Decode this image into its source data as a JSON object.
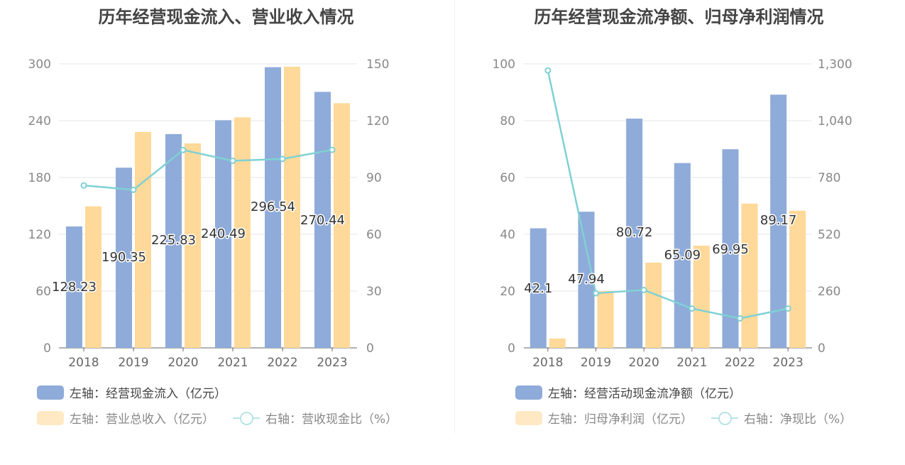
{
  "charts": [
    {
      "title": "历年经营现金流入、营业收入情况",
      "legend": [
        {
          "label": "左轴：经营现金流入（亿元）",
          "kind": "bar",
          "color": "#8eabd9"
        },
        {
          "label": "左轴：营业总收入（亿元）",
          "kind": "bar",
          "color": "#ffd999"
        },
        {
          "label": "右轴：营收现金比（%）",
          "kind": "line",
          "color": "#7fd1d4"
        }
      ]
    },
    {
      "title": "历年经营现金流净额、归母净利润情况",
      "legend": [
        {
          "label": "左轴：经营活动现金流净额（亿元）",
          "kind": "bar",
          "color": "#8eabd9"
        },
        {
          "label": "左轴：归母净利润（亿元）",
          "kind": "bar",
          "color": "#ffd999"
        },
        {
          "label": "右轴：净现比（%）",
          "kind": "line",
          "color": "#7fd1d4"
        }
      ]
    }
  ],
  "chart_data": [
    {
      "type": "bar",
      "title": "历年经营现金流入、营业收入情况",
      "categories": [
        "2018",
        "2019",
        "2020",
        "2021",
        "2022",
        "2023"
      ],
      "left_axis": {
        "min": 0,
        "max": 300,
        "ticks": [
          "0",
          "60",
          "120",
          "180",
          "240",
          "300"
        ]
      },
      "right_axis": {
        "min": 0,
        "max": 150,
        "ticks": [
          "0",
          "30",
          "60",
          "90",
          "120",
          "150"
        ]
      },
      "series": [
        {
          "name": "左轴：经营现金流入（亿元）",
          "axis": "left",
          "type": "bar",
          "color": "#8eabd9",
          "values": [
            128.23,
            190.35,
            225.83,
            240.49,
            296.54,
            270.44
          ],
          "labels": [
            "128.23",
            "190.35",
            "225.83",
            "240.49",
            "296.54",
            "270.44"
          ]
        },
        {
          "name": "左轴：营业总收入（亿元）",
          "axis": "left",
          "type": "bar",
          "color": "#ffd999",
          "values": [
            149.5,
            228.0,
            216.0,
            243.5,
            297.0,
            258.5
          ]
        },
        {
          "name": "右轴：营收现金比（%）",
          "axis": "right",
          "type": "line",
          "color": "#7fd1d4",
          "values": [
            85.8,
            83.5,
            104.5,
            98.8,
            99.8,
            104.6
          ]
        }
      ],
      "grid": true
    },
    {
      "type": "bar",
      "title": "历年经营现金流净额、归母净利润情况",
      "categories": [
        "2018",
        "2019",
        "2020",
        "2021",
        "2022",
        "2023"
      ],
      "left_axis": {
        "min": 0,
        "max": 100,
        "ticks": [
          "0",
          "20",
          "40",
          "60",
          "80",
          "100"
        ]
      },
      "right_axis": {
        "min": 0,
        "max": 1300,
        "ticks": [
          "0",
          "260",
          "520",
          "780",
          "1,040",
          "1,300"
        ]
      },
      "series": [
        {
          "name": "左轴：经营活动现金流净额（亿元）",
          "axis": "left",
          "type": "bar",
          "color": "#8eabd9",
          "values": [
            42.1,
            47.94,
            80.72,
            65.09,
            69.95,
            89.17
          ],
          "labels": [
            "42.1",
            "47.94",
            "80.72",
            "65.09",
            "69.95",
            "89.17"
          ]
        },
        {
          "name": "左轴：归母净利润（亿元）",
          "axis": "left",
          "type": "bar",
          "color": "#ffd999",
          "values": [
            3.3,
            20.0,
            30.0,
            36.0,
            50.8,
            48.3
          ]
        },
        {
          "name": "右轴：净现比（%）",
          "axis": "right",
          "type": "line",
          "color": "#7fd1d4",
          "values": [
            1270,
            250,
            265,
            180,
            135,
            180
          ]
        }
      ],
      "grid": true
    }
  ]
}
